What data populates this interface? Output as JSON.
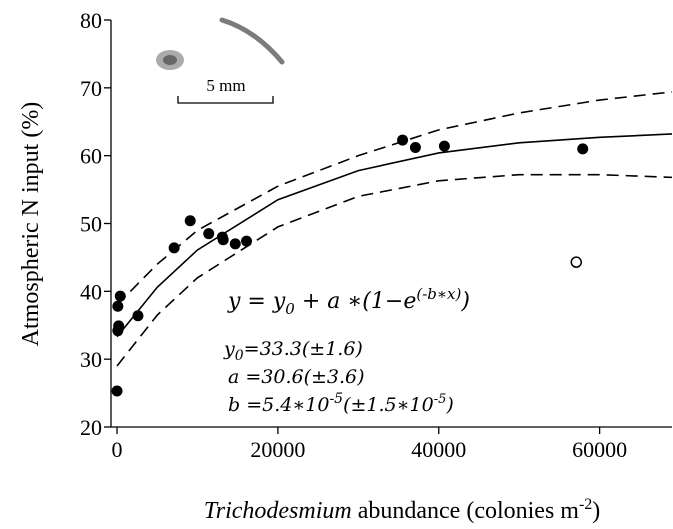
{
  "chart_data": {
    "type": "scatter",
    "y_label": "Atmospheric N input  (%)",
    "x_label": [
      "Trichodesmium",
      " abundance (colonies m",
      "-2",
      ")"
    ],
    "scale_bar_label": "5 mm",
    "equation": [
      "y = y",
      "0",
      " + a ∗(1−e",
      "(-b∗x)",
      ")"
    ],
    "params": [
      [
        "y",
        "0",
        "=33.3(±1.6)"
      ],
      [
        "a =30.6(±3.6)"
      ],
      [
        "b =5.4∗10",
        "-5",
        "(±1.5∗10",
        "-5",
        ")"
      ]
    ],
    "xlim": [
      -750,
      69000
    ],
    "ylim": [
      20,
      80
    ],
    "xticks": [
      0,
      20000,
      40000,
      60000
    ],
    "yticks": [
      20,
      30,
      40,
      50,
      60,
      70,
      80
    ],
    "color": "#000000",
    "points": {
      "x": [
        0,
        100,
        200,
        400,
        100,
        2600,
        7100,
        9100,
        11400,
        13100,
        13200,
        14700,
        16100,
        35500,
        37100,
        40700,
        57900
      ],
      "values": [
        25.3,
        34.2,
        34.9,
        39.3,
        37.8,
        36.4,
        46.4,
        50.4,
        48.5,
        48.0,
        47.6,
        47.0,
        47.4,
        62.3,
        61.2,
        61.4,
        61.0
      ]
    },
    "open_points": {
      "x": [
        57100
      ],
      "values": [
        44.3
      ]
    },
    "curve_x": [
      0,
      5000,
      10000,
      20000,
      30000,
      40000,
      50000,
      60000,
      69000
    ],
    "curves": [
      {
        "style": "solid",
        "values": [
          33.3,
          40.6,
          46.1,
          53.5,
          57.8,
          60.4,
          61.9,
          62.7,
          63.2
        ]
      },
      {
        "style": "dashed",
        "values": [
          38,
          44,
          49,
          55.5,
          60,
          63.8,
          66.3,
          68.2,
          69.4
        ]
      },
      {
        "style": "dashed",
        "values": [
          29,
          36.5,
          42,
          49.5,
          54,
          56.3,
          57.2,
          57.2,
          56.8
        ]
      }
    ]
  }
}
